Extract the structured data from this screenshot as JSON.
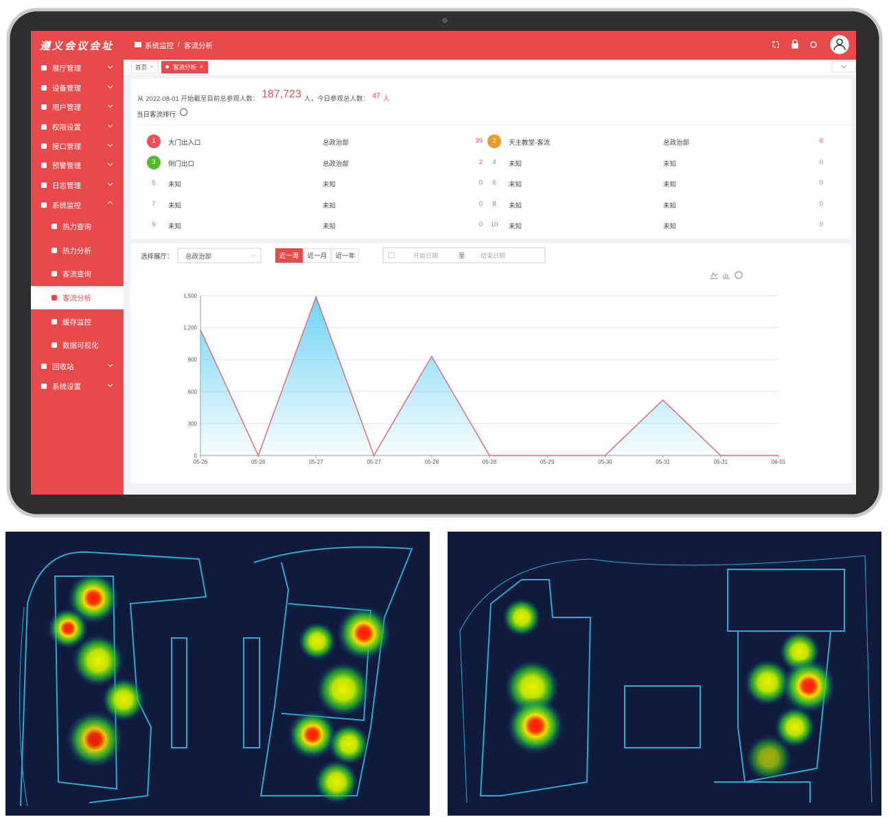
{
  "logo": "遵义会议会址",
  "menu": [
    "展厅管理",
    "设备管理",
    "用户管理",
    "权限设置",
    "接口管理",
    "预警管理",
    "日志管理",
    "系统监控"
  ],
  "submenu": [
    "热力查询",
    "热力分析",
    "客流查询",
    "客流分析",
    "缓存监控",
    "数据可视化"
  ],
  "menu_after": [
    "回收站",
    "系统设置"
  ],
  "breadcrumb": [
    "系统监控",
    "/",
    "客流分析"
  ],
  "tabs": [
    "首页",
    "客流分析"
  ],
  "stats": {
    "prefix": "从 2022-08-01 开始截至目前总参观人数：",
    "total": "187,723",
    "mid": "人，今日参观总人数：",
    "today": "47",
    "suffix": "人"
  },
  "ranking_title": "当日客流排行",
  "rank_colors": [
    "#e9505a",
    "#ee9a2c",
    "#52b92e"
  ],
  "ranking": [
    {
      "rank": 1,
      "name": "大门出入口",
      "dept": "总政治部",
      "count": 39
    },
    {
      "rank": 2,
      "name": "天主教堂-客流",
      "dept": "总政治部",
      "count": 6
    },
    {
      "rank": 3,
      "name": "侧门出口",
      "dept": "总政治部",
      "count": 2
    },
    {
      "rank": 4,
      "name": "未知",
      "dept": "未知",
      "count": 0
    },
    {
      "rank": 5,
      "name": "未知",
      "dept": "未知",
      "count": 0
    },
    {
      "rank": 6,
      "name": "未知",
      "dept": "未知",
      "count": 0
    },
    {
      "rank": 7,
      "name": "未知",
      "dept": "未知",
      "count": 0
    },
    {
      "rank": 8,
      "name": "未知",
      "dept": "未知",
      "count": 0
    },
    {
      "rank": 9,
      "name": "未知",
      "dept": "未知",
      "count": 0
    },
    {
      "rank": 10,
      "name": "未知",
      "dept": "未知",
      "count": 0
    }
  ],
  "filter": {
    "label": "选择展厅：",
    "hall": "总政治部",
    "ranges": [
      "近一周",
      "近一月",
      "近一年"
    ],
    "start": "开始日期",
    "to": "至",
    "end": "结束日期"
  },
  "chart_data": {
    "type": "line",
    "categories": [
      "05-26",
      "05-26",
      "05-27",
      "05-27",
      "05-28",
      "05-28",
      "05-29",
      "05-30",
      "05-31",
      "05-31",
      "06-01"
    ],
    "values": [
      1180,
      0,
      1490,
      0,
      930,
      0,
      0,
      0,
      520,
      0,
      0
    ],
    "color": "#e06c75",
    "area_color": "#5ecff5",
    "ylim": [
      0,
      1500
    ],
    "yticks": [
      0,
      300,
      600,
      900,
      {
        "value": 1200,
        "label": "1,200"
      },
      {
        "value": 1500,
        "label": "1,500"
      }
    ],
    "grid": true
  }
}
